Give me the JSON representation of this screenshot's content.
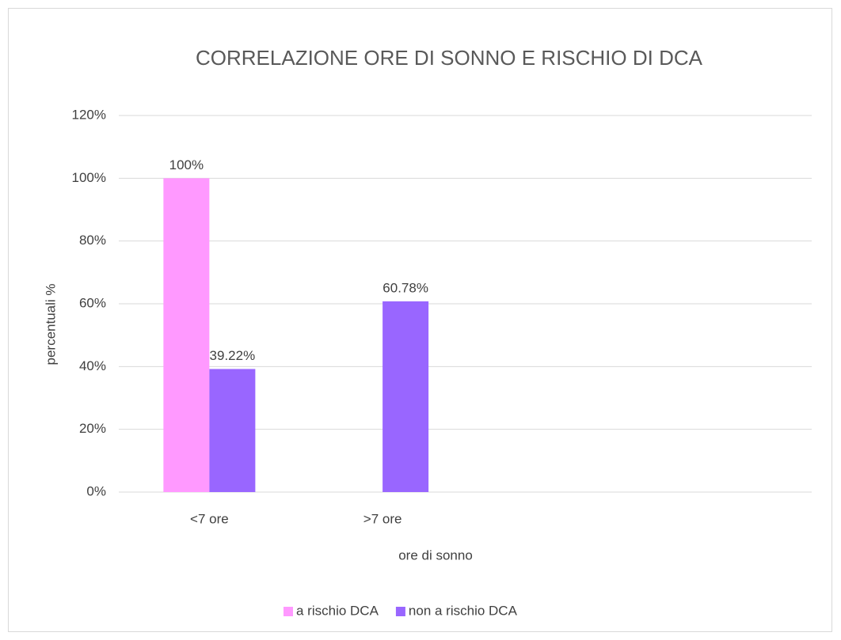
{
  "chart_data": {
    "type": "bar",
    "title": "CORRELAZIONE ORE DI SONNO E RISCHIO DI DCA",
    "x_label": "ore di sonno",
    "y_label": "percentuali %",
    "categories": [
      "<7 ore",
      ">7 ore",
      null,
      null
    ],
    "series": [
      {
        "name": "a rischio DCA",
        "color": "#ff99ff",
        "values": [
          100,
          null,
          null,
          null
        ],
        "value_labels": [
          "100%",
          null,
          null,
          null
        ]
      },
      {
        "name": "non a rischio DCA",
        "color": "#9966ff",
        "values": [
          39.22,
          60.78,
          null,
          null
        ],
        "value_labels": [
          "39.22%",
          "60.78%",
          null,
          null
        ]
      }
    ],
    "ylim": [
      0,
      120
    ],
    "yticks": [
      {
        "value": 0,
        "label": "0%"
      },
      {
        "value": 20,
        "label": "20%"
      },
      {
        "value": 40,
        "label": "40%"
      },
      {
        "value": 60,
        "label": "60%"
      },
      {
        "value": 80,
        "label": "80%"
      },
      {
        "value": 100,
        "label": "100%"
      },
      {
        "value": 120,
        "label": "120%"
      }
    ],
    "grid": true,
    "legend": "bottom"
  }
}
